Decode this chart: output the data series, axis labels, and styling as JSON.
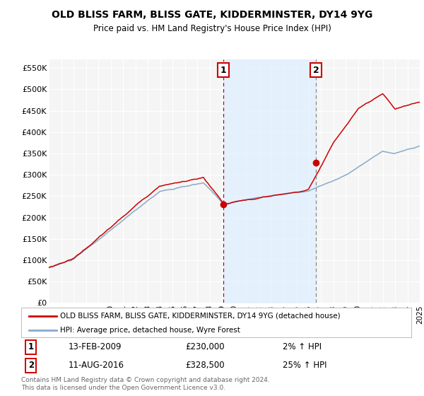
{
  "title": "OLD BLISS FARM, BLISS GATE, KIDDERMINSTER, DY14 9YG",
  "subtitle": "Price paid vs. HM Land Registry's House Price Index (HPI)",
  "ylabel_ticks": [
    "£0",
    "£50K",
    "£100K",
    "£150K",
    "£200K",
    "£250K",
    "£300K",
    "£350K",
    "£400K",
    "£450K",
    "£500K",
    "£550K"
  ],
  "ytick_values": [
    0,
    50000,
    100000,
    150000,
    200000,
    250000,
    300000,
    350000,
    400000,
    450000,
    500000,
    550000
  ],
  "ylim": [
    0,
    570000
  ],
  "x_start_year": 1995,
  "x_end_year": 2025,
  "red_line_color": "#cc0000",
  "blue_line_color": "#88aacc",
  "shade_color": "#ddeeff",
  "background_color": "#ffffff",
  "plot_bg_color": "#f5f5f5",
  "grid_color": "#ffffff",
  "purchase1_date": "13-FEB-2009",
  "purchase1_price": 230000,
  "purchase1_year": 2009.11,
  "purchase1_label": "1",
  "purchase1_hpi_pct": "2%",
  "purchase2_date": "11-AUG-2016",
  "purchase2_price": 328500,
  "purchase2_year": 2016.62,
  "purchase2_label": "2",
  "purchase2_hpi_pct": "25%",
  "legend_line1": "OLD BLISS FARM, BLISS GATE, KIDDERMINSTER, DY14 9YG (detached house)",
  "legend_line2": "HPI: Average price, detached house, Wyre Forest",
  "footer": "Contains HM Land Registry data © Crown copyright and database right 2024.\nThis data is licensed under the Open Government Licence v3.0."
}
